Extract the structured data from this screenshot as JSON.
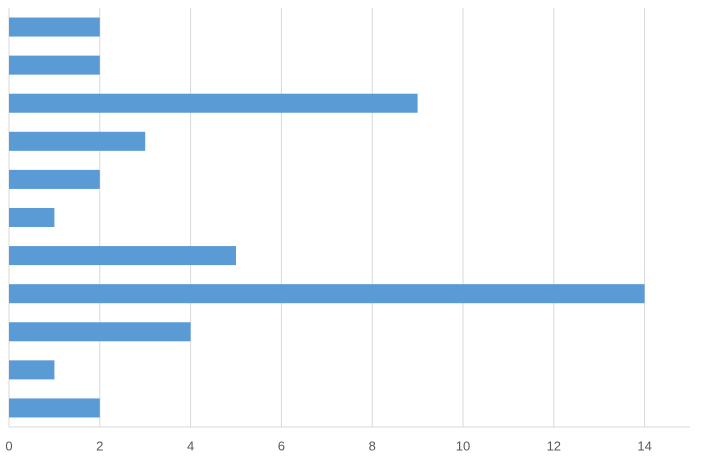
{
  "chart_data": {
    "type": "bar",
    "orientation": "horizontal",
    "categories": [
      null,
      null,
      null,
      null,
      null,
      null,
      null,
      null,
      null,
      null,
      null
    ],
    "values": [
      2,
      2,
      9,
      3,
      2,
      1,
      5,
      14,
      4,
      1,
      2
    ],
    "color": "#5b9bd5",
    "xlim": [
      0,
      15
    ],
    "xticks": [
      0,
      2,
      4,
      6,
      8,
      10,
      12,
      14
    ],
    "grid": true
  }
}
